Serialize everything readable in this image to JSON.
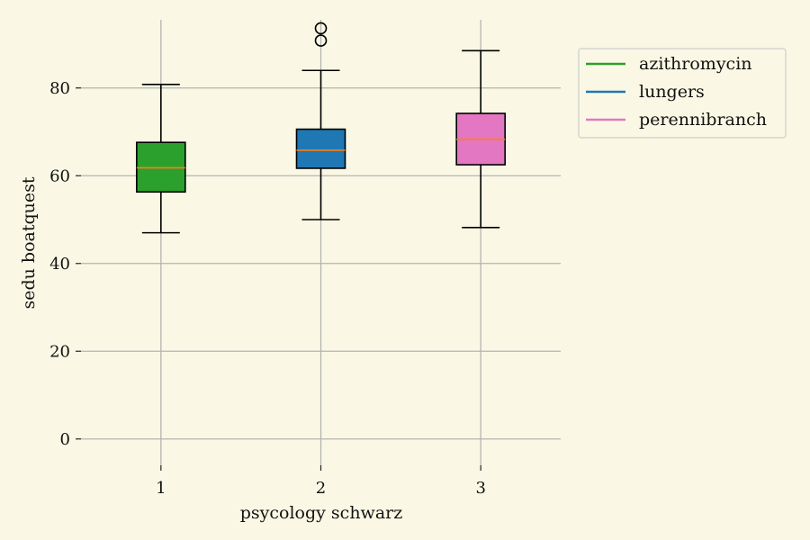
{
  "chart_data": {
    "type": "box",
    "xlabel": "psycology schwarz",
    "ylabel": "sedu boatquest",
    "ylim": [
      -6,
      98
    ],
    "yticks": [
      0,
      20,
      40,
      60,
      80
    ],
    "grid": true,
    "legend_position": "outside-top-right",
    "boxes": [
      {
        "name": "azithromycin",
        "x": 1,
        "color": "#2ca02c",
        "whisker_low": 47,
        "q1": 56.3,
        "median": 61.8,
        "q3": 67.6,
        "whisker_high": 80.8,
        "outliers": []
      },
      {
        "name": "lungers",
        "x": 2,
        "color": "#1f77b4",
        "whisker_low": 50,
        "q1": 61.7,
        "median": 65.8,
        "q3": 70.6,
        "whisker_high": 84,
        "outliers": [
          90.8,
          93.6
        ]
      },
      {
        "name": "perennibranch",
        "x": 3,
        "color": "#e377c2",
        "whisker_low": 48.2,
        "q1": 62.5,
        "median": 68.3,
        "q3": 74.2,
        "whisker_high": 88.5,
        "outliers": []
      }
    ],
    "median_color": "#ff7f0e"
  }
}
